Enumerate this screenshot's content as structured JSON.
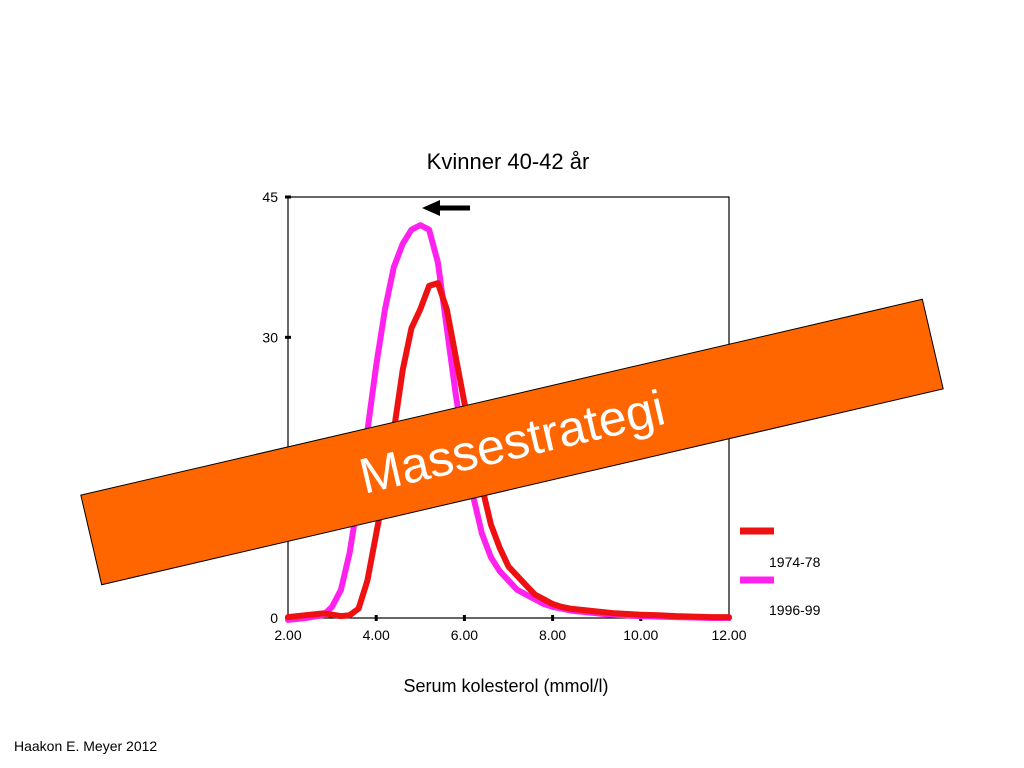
{
  "chart_data": {
    "type": "line",
    "title": "Kvinner 40-42 år",
    "xlabel": "Serum kolesterol (mmol/l)",
    "ylabel": "",
    "xlim": [
      2.0,
      12.0
    ],
    "ylim": [
      0,
      45
    ],
    "x_ticks": [
      2.0,
      4.0,
      6.0,
      8.0,
      10.0,
      12.0
    ],
    "x_tick_labels": [
      "2.00",
      "4.00",
      "6.00",
      "8.00",
      "10.00",
      "12.00"
    ],
    "y_ticks": [
      0,
      30,
      45
    ],
    "y_tick_labels": [
      "0",
      "30",
      "45"
    ],
    "legend_position": "bottom-right",
    "series": [
      {
        "name": "1974-78",
        "color": "#ee1111",
        "x": [
          2.0,
          2.4,
          2.8,
          3.2,
          3.4,
          3.6,
          3.8,
          4.0,
          4.2,
          4.4,
          4.6,
          4.8,
          5.0,
          5.2,
          5.4,
          5.6,
          5.8,
          6.0,
          6.2,
          6.4,
          6.6,
          6.8,
          7.0,
          7.2,
          7.4,
          7.6,
          7.8,
          8.0,
          8.2,
          8.4,
          8.6,
          8.8,
          9.0,
          9.2,
          9.4,
          9.6,
          9.8,
          10.0,
          10.4,
          10.8,
          11.2,
          11.6,
          12.0
        ],
        "y": [
          0.1,
          0.3,
          0.5,
          0.2,
          0.3,
          1.0,
          4.0,
          9.0,
          14.0,
          20.0,
          26.5,
          31.0,
          33.0,
          35.5,
          35.8,
          33.0,
          28.0,
          23.0,
          18.5,
          14.0,
          10.0,
          7.5,
          5.5,
          4.5,
          3.5,
          2.5,
          2.0,
          1.5,
          1.2,
          1.0,
          0.9,
          0.8,
          0.7,
          0.6,
          0.5,
          0.45,
          0.4,
          0.35,
          0.3,
          0.2,
          0.15,
          0.1,
          0.1
        ]
      },
      {
        "name": "1996-99",
        "color": "#ff22ee",
        "x": [
          2.0,
          2.4,
          2.8,
          3.0,
          3.2,
          3.4,
          3.6,
          3.8,
          4.0,
          4.2,
          4.4,
          4.6,
          4.8,
          5.0,
          5.2,
          5.4,
          5.6,
          5.8,
          6.0,
          6.2,
          6.4,
          6.6,
          6.8,
          7.0,
          7.2,
          7.4,
          7.6,
          7.8,
          8.0,
          8.2,
          8.4,
          8.6,
          8.8,
          9.0,
          9.2,
          9.4,
          9.6,
          9.8,
          10.0,
          10.4,
          10.8,
          11.2,
          11.6,
          12.0
        ],
        "y": [
          -0.2,
          0.0,
          0.3,
          1.2,
          3.0,
          7.0,
          13.0,
          20.0,
          27.0,
          33.0,
          37.5,
          40.0,
          41.5,
          42.0,
          41.5,
          38.0,
          31.0,
          24.0,
          18.0,
          13.0,
          9.0,
          6.5,
          5.0,
          4.0,
          3.0,
          2.5,
          2.0,
          1.5,
          1.2,
          1.0,
          0.8,
          0.7,
          0.6,
          0.5,
          0.4,
          0.35,
          0.3,
          0.25,
          0.2,
          0.15,
          0.1,
          0.05,
          0.0,
          0.0
        ]
      }
    ],
    "annotations": [
      "left-arrow"
    ]
  },
  "banner": {
    "text": "Massestrategi",
    "fill": "#ff6600",
    "text_color": "#ffffff"
  },
  "footer": {
    "credit": "Haakon E. Meyer 2012"
  }
}
